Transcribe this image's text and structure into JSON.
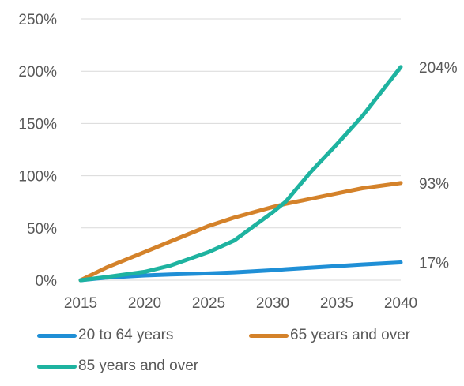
{
  "chart_data": {
    "type": "line",
    "title": "",
    "xlabel": "",
    "ylabel": "",
    "x": [
      2015,
      2017,
      2020,
      2022,
      2025,
      2027,
      2030,
      2031,
      2033,
      2035,
      2037,
      2040
    ],
    "xticks": [
      "2015",
      "2020",
      "2025",
      "2030",
      "2035",
      "2040"
    ],
    "xtick_values": [
      2015,
      2020,
      2025,
      2030,
      2035,
      2040
    ],
    "yticks": [
      "0%",
      "50%",
      "100%",
      "150%",
      "200%",
      "250%"
    ],
    "ytick_values": [
      0,
      50,
      100,
      150,
      200,
      250
    ],
    "xlim": [
      2015,
      2040
    ],
    "ylim": [
      0,
      250
    ],
    "grid": "horizontal",
    "legend_position": "bottom",
    "series": [
      {
        "name": "20 to 64 years",
        "color": "#1F8FD6",
        "values": [
          0,
          2.5,
          4.5,
          5.5,
          6.5,
          7.5,
          9.5,
          10.5,
          12,
          13.5,
          15,
          17
        ],
        "end_label": "17%"
      },
      {
        "name": "65 years and over",
        "color": "#D4822A",
        "values": [
          0,
          12,
          27,
          37,
          52,
          60,
          70,
          73,
          78,
          83,
          88,
          93
        ],
        "end_label": "93%"
      },
      {
        "name": "85 years and over",
        "color": "#1EB3A0",
        "values": [
          0,
          3,
          8,
          14,
          27,
          38,
          65,
          75,
          104,
          130,
          157,
          204
        ],
        "end_label": "204%"
      }
    ]
  }
}
